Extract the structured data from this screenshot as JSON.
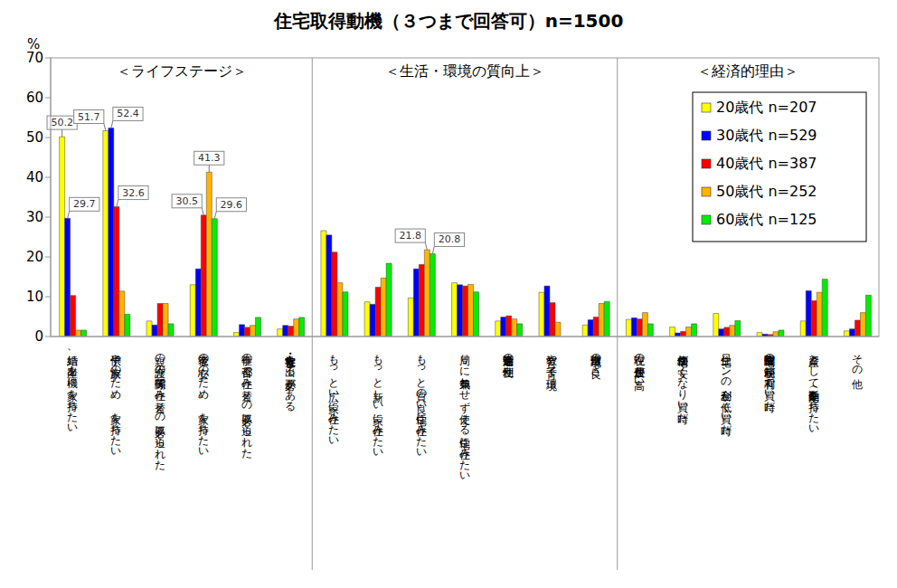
{
  "chart_data": {
    "type": "bar",
    "title": "住宅取得動機（３つまで回答可）n=1500",
    "y_label": "%",
    "categories": [
      "結婚、出産を機に家を持ちたい",
      "子供や家族のため、家を持ちたい",
      "親の介護の関係等で住み替えの必要に迫られた",
      "老後の安心のため、家を持ちたい",
      "仕事の都合で住み替えの必要に迫られた",
      "寮・社宅・官舎を出る必要がある",
      "もっと広い家に住みたい",
      "もっと新しい家に住みたい",
      "もっと質の良い住宅に住みたい",
      "周りに気兼ねせず使える住宅に住みたい",
      "通勤等生活の利便性",
      "教育や子育て環境",
      "自然環境の良さ",
      "現在の住居費が高い",
      "住宅価格が安くなり買い時だ",
      "住宅ローンの金利が低く買い時だ",
      "住宅取得関連の税制等が有利で買い時だ",
      "資産として住宅（不動産）を持ちたい",
      "その他"
    ],
    "series": [
      {
        "name": "20歳代 n=207",
        "color": "#ffff00",
        "values": [
          50.2,
          51.7,
          3.9,
          13.0,
          1.0,
          1.9,
          26.6,
          8.7,
          9.7,
          13.5,
          3.9,
          11.1,
          2.9,
          4.3,
          2.4,
          5.8,
          1.0,
          3.9,
          1.4
        ]
      },
      {
        "name": "30歳代 n=529",
        "color": "#0000ff",
        "values": [
          29.7,
          52.4,
          2.9,
          17.0,
          3.0,
          2.8,
          25.5,
          8.1,
          17.0,
          13.0,
          4.9,
          12.7,
          4.2,
          4.7,
          0.9,
          1.9,
          0.6,
          11.5,
          1.9
        ]
      },
      {
        "name": "40歳代 n=387",
        "color": "#ff0000",
        "values": [
          10.3,
          32.6,
          8.3,
          30.5,
          2.3,
          2.6,
          21.2,
          12.4,
          18.1,
          12.7,
          5.2,
          8.5,
          4.9,
          4.4,
          1.3,
          2.3,
          0.5,
          9.0,
          4.1
        ]
      },
      {
        "name": "50歳代 n=252",
        "color": "#ffb400",
        "values": [
          1.6,
          11.4,
          8.3,
          41.3,
          2.8,
          4.4,
          13.5,
          14.7,
          21.8,
          13.1,
          4.4,
          3.6,
          8.3,
          6.0,
          2.4,
          2.8,
          1.2,
          11.1,
          6.0
        ]
      },
      {
        "name": "60歳代 n=125",
        "color": "#00ee00",
        "values": [
          1.6,
          5.6,
          3.2,
          29.6,
          4.8,
          4.8,
          11.2,
          18.4,
          20.8,
          11.2,
          3.2,
          0.0,
          8.8,
          3.2,
          3.2,
          4.0,
          1.6,
          14.4,
          10.4
        ]
      }
    ],
    "ylim": [
      0,
      70
    ],
    "yticks": [
      0,
      10,
      20,
      30,
      40,
      50,
      60,
      70
    ],
    "grid": false,
    "legend": "upper right",
    "sections": [
      {
        "label": "＜ライフステージ＞",
        "count": 6
      },
      {
        "label": "＜生活・環境の質向上＞",
        "count": 7
      },
      {
        "label": "＜経済的理由＞",
        "count": 6
      }
    ],
    "annotations": [
      {
        "category": "結婚、出産を機に家を持ちたい",
        "series": "20歳代 n=207",
        "text": "50.2"
      },
      {
        "category": "結婚、出産を機に家を持ちたい",
        "series": "30歳代 n=529",
        "text": "29.7"
      },
      {
        "category": "子供や家族のため、家を持ちたい",
        "series": "20歳代 n=207",
        "text": "51.7"
      },
      {
        "category": "子供や家族のため、家を持ちたい",
        "series": "30歳代 n=529",
        "text": "52.4"
      },
      {
        "category": "子供や家族のため、家を持ちたい",
        "series": "40歳代 n=387",
        "text": "32.6"
      },
      {
        "category": "老後の安心のため、家を持ちたい",
        "series": "40歳代 n=387",
        "text": "30.5"
      },
      {
        "category": "老後の安心のため、家を持ちたい",
        "series": "50歳代 n=252",
        "text": "41.3"
      },
      {
        "category": "老後の安心のため、家を持ちたい",
        "series": "60歳代 n=125",
        "text": "29.6"
      },
      {
        "category": "もっと質の良い住宅に住みたい",
        "series": "50歳代 n=252",
        "text": "21.8"
      },
      {
        "category": "もっと質の良い住宅に住みたい",
        "series": "60歳代 n=125",
        "text": "20.8"
      }
    ]
  }
}
